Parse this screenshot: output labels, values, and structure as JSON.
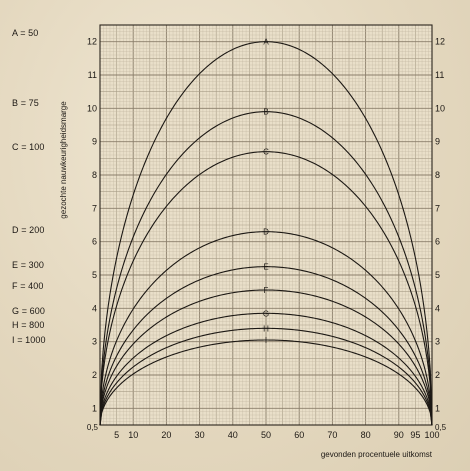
{
  "legend": [
    {
      "letter": "A",
      "text": "A = 50"
    },
    {
      "letter": "B",
      "text": "B = 75"
    },
    {
      "letter": "C",
      "text": "C = 100"
    },
    {
      "letter": "D",
      "text": "D = 200"
    },
    {
      "letter": "E",
      "text": "E = 300"
    },
    {
      "letter": "F",
      "text": "F = 400"
    },
    {
      "letter": "G",
      "text": "G = 600"
    },
    {
      "letter": "H",
      "text": "H = 800"
    },
    {
      "letter": "I",
      "text": "I = 1000"
    }
  ],
  "chart_data": {
    "type": "line",
    "xlabel": "gevonden procentuele uitkomst",
    "ylabel": "gezochte nauwkeurigheidsmarge",
    "xlim": [
      0,
      100
    ],
    "ylim": [
      0.5,
      12.5
    ],
    "x_ticks": [
      5,
      10,
      20,
      30,
      40,
      50,
      60,
      70,
      80,
      90,
      95,
      100
    ],
    "x_tick_labels": [
      "5",
      "10",
      "20",
      "30",
      "40",
      "50",
      "60",
      "70",
      "80",
      "90",
      "95",
      "100"
    ],
    "y_ticks": [
      0.5,
      1,
      2,
      3,
      4,
      5,
      6,
      7,
      8,
      9,
      10,
      11,
      12
    ],
    "y_tick_labels": [
      "0,5",
      "1",
      "2",
      "3",
      "4",
      "5",
      "6",
      "7",
      "8",
      "9",
      "10",
      "11",
      "12"
    ],
    "grid": true,
    "series": [
      {
        "name": "A",
        "peak": 12.0
      },
      {
        "name": "B",
        "peak": 9.9
      },
      {
        "name": "C",
        "peak": 8.7
      },
      {
        "name": "D",
        "peak": 6.3
      },
      {
        "name": "E",
        "peak": 5.25
      },
      {
        "name": "F",
        "peak": 4.55
      },
      {
        "name": "G",
        "peak": 3.85
      },
      {
        "name": "H",
        "peak": 3.4
      },
      {
        "name": "I",
        "peak": 3.05
      }
    ]
  }
}
